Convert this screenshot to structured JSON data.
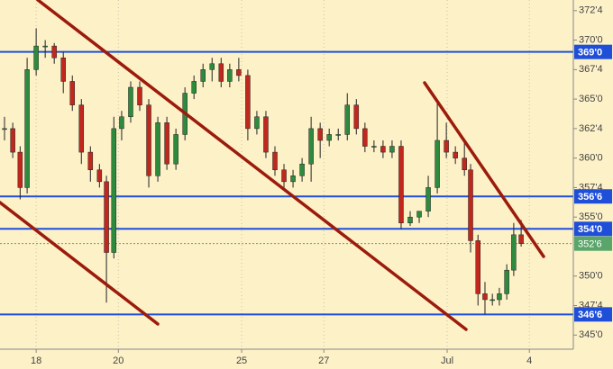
{
  "chart_data": {
    "type": "candlestick",
    "x": [
      -0.77,
      -0.57,
      -0.39,
      -0.22,
      0,
      0.22,
      0.44,
      0.66,
      0.88,
      1.1,
      1.32,
      1.54,
      1.71,
      1.89,
      2.08,
      2.3,
      2.52,
      2.74,
      2.96,
      3.18,
      3.4,
      3.62,
      3.84,
      4.06,
      4.28,
      4.5,
      4.71,
      4.93,
      5.15,
      5.37,
      5.59,
      5.81,
      6.03,
      6.25,
      6.47,
      6.69,
      6.91,
      7.13,
      7.35,
      7.57,
      7.79,
      8.0,
      8.22,
      8.44,
      8.66,
      8.88,
      9.1,
      9.32,
      9.54,
      9.76,
      9.98,
      10.2,
      10.42,
      10.57,
      10.75,
      10.92,
      11.1,
      11.27,
      11.45,
      11.62,
      11.8
    ],
    "open": [
      362.5,
      362.5,
      360.5,
      357.5,
      367.5,
      369.5,
      369.5,
      368.5,
      366.5,
      364.5,
      360.5,
      359,
      358,
      352,
      362.5,
      363.5,
      366,
      364.5,
      358.5,
      363,
      359.5,
      362,
      365.5,
      366.5,
      367.5,
      368,
      366.5,
      367.5,
      367,
      362.5,
      363.5,
      360.5,
      359,
      358,
      358.5,
      359.5,
      362.5,
      361.5,
      362,
      362,
      364.5,
      362.5,
      361,
      361,
      360.5,
      361,
      354.5,
      355,
      355.5,
      357.5,
      361.5,
      360.5,
      360,
      359,
      353,
      348.5,
      348,
      348,
      348.5,
      350.5,
      353.5
    ],
    "high": [
      363.5,
      363,
      361,
      368.5,
      371,
      370,
      369.75,
      369,
      367,
      365,
      361,
      359.5,
      358.5,
      363.5,
      364,
      366.5,
      366.5,
      365,
      363.5,
      363.5,
      362.5,
      366,
      367,
      368,
      368.5,
      368.5,
      368,
      368.5,
      367.5,
      364,
      364,
      361,
      359.5,
      359,
      360,
      363.5,
      363,
      362.5,
      362.5,
      365.5,
      365,
      363,
      361.5,
      361.5,
      361.5,
      361.5,
      355.5,
      355.5,
      358.5,
      365,
      363,
      361,
      361.5,
      359.5,
      353.5,
      349.5,
      348.5,
      349,
      351,
      354.5,
      354.75
    ],
    "low": [
      361.5,
      360,
      356.5,
      357,
      367,
      368.5,
      368,
      365.5,
      364,
      359.5,
      358,
      357.5,
      347.75,
      351.5,
      361.5,
      363,
      364,
      357.5,
      358,
      359,
      359,
      361.5,
      365,
      366,
      366.5,
      366,
      366,
      366.5,
      361.5,
      362,
      360,
      358.5,
      357.5,
      357.5,
      358,
      358,
      360,
      361,
      361.5,
      361.5,
      362,
      360.5,
      360.5,
      360,
      360,
      354,
      354.25,
      354.5,
      355,
      357,
      360,
      359.5,
      358.5,
      352,
      347.5,
      346.75,
      347.5,
      347.5,
      348,
      350,
      352.5
    ],
    "close": [
      362.5,
      360.5,
      357.5,
      367.5,
      369.5,
      369.5,
      368.5,
      366.5,
      364.5,
      360.5,
      359,
      358,
      352,
      362.5,
      363.5,
      366,
      364.5,
      358.5,
      363,
      359.5,
      362,
      365.5,
      366.5,
      367.5,
      368,
      366.5,
      367.5,
      367,
      362.5,
      363.5,
      360.5,
      359,
      358,
      358.5,
      359.5,
      362.5,
      361.5,
      362,
      362,
      364.5,
      362.5,
      361,
      361,
      360.5,
      361,
      354.5,
      355,
      355.5,
      357.5,
      361.5,
      360.5,
      360,
      359,
      353,
      348.5,
      348,
      348,
      348.5,
      350.5,
      353.5,
      352.75
    ],
    "up_color": "#2e8b3e",
    "down_color": "#c0281e",
    "wick_color": "#222222",
    "xlim": [
      -0.88,
      13.07
    ],
    "xticks": [
      {
        "value": 0,
        "label": "18"
      },
      {
        "value": 2,
        "label": "20"
      },
      {
        "value": 5,
        "label": "25"
      },
      {
        "value": 7,
        "label": "27"
      },
      {
        "value": 10,
        "label": "Jul"
      },
      {
        "value": 12,
        "label": "4"
      }
    ],
    "ylim": [
      343.8,
      373.4
    ],
    "yticks": [
      {
        "value": 345,
        "label": "345'0"
      },
      {
        "value": 347.5,
        "label": "347'4"
      },
      {
        "value": 350,
        "label": "350'0"
      },
      {
        "value": 355,
        "label": "355'0"
      },
      {
        "value": 357.5,
        "label": "357'4"
      },
      {
        "value": 360,
        "label": "360'0"
      },
      {
        "value": 362.5,
        "label": "362'4"
      },
      {
        "value": 365,
        "label": "365'0"
      },
      {
        "value": 367.5,
        "label": "367'4"
      },
      {
        "value": 370,
        "label": "370'0"
      },
      {
        "value": 372.5,
        "label": "372'4"
      }
    ],
    "grid": "x",
    "levels": [
      {
        "value": 369,
        "label": "369'0"
      },
      {
        "value": 356.75,
        "label": "356'6"
      },
      {
        "value": 354,
        "label": "354'0"
      },
      {
        "value": 346.75,
        "label": "346'6"
      }
    ],
    "level_color": "#1f4fd8",
    "last": {
      "value": 352.75,
      "label": "352'6"
    },
    "last_color": "#5aa56a"
  }
}
